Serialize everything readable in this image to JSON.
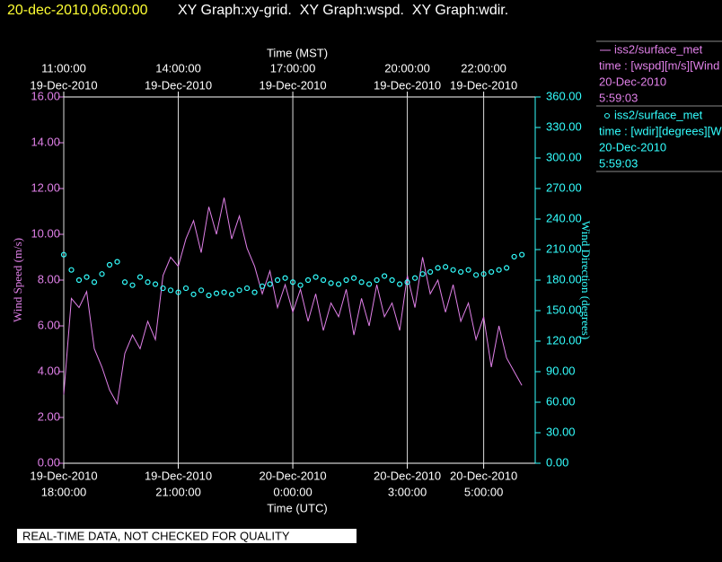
{
  "chart_data": {
    "type": "line",
    "timestamp": "20-dec-2010,06:00:00",
    "title": "XY Graph:xy-grid.  XY Graph:wspd.  XY Graph:wdir.",
    "x_label": "Time (UTC)",
    "x2_label": "Time (MST)",
    "y_label": "Wind Speed (m/s)",
    "y2_label": "Wind Direction (degrees)",
    "note": "REAL-TIME DATA, NOT CHECKED FOR QUALITY",
    "xlim": [
      0,
      12.35
    ],
    "xticks": [
      {
        "value": 0,
        "label": [
          "19-Dec-2010",
          "18:00:00"
        ]
      },
      {
        "value": 3,
        "label": [
          "19-Dec-2010",
          "21:00:00"
        ]
      },
      {
        "value": 6,
        "label": [
          "20-Dec-2010",
          "0:00:00"
        ]
      },
      {
        "value": 9,
        "label": [
          "20-Dec-2010",
          "3:00:00"
        ]
      },
      {
        "value": 11,
        "label": [
          "20-Dec-2010",
          "5:00:00"
        ]
      }
    ],
    "x2ticks": [
      {
        "value": 0,
        "label": [
          "11:00:00",
          "19-Dec-2010"
        ]
      },
      {
        "value": 3,
        "label": [
          "14:00:00",
          "19-Dec-2010"
        ]
      },
      {
        "value": 6,
        "label": [
          "17:00:00",
          "19-Dec-2010"
        ]
      },
      {
        "value": 9,
        "label": [
          "20:00:00",
          "19-Dec-2010"
        ]
      },
      {
        "value": 11,
        "label": [
          "22:00:00",
          "19-Dec-2010"
        ]
      }
    ],
    "ylim": [
      0,
      16
    ],
    "yticks": [
      {
        "value": 0,
        "label": "0.00"
      },
      {
        "value": 2,
        "label": "2.00"
      },
      {
        "value": 4,
        "label": "4.00"
      },
      {
        "value": 6,
        "label": "6.00"
      },
      {
        "value": 8,
        "label": "8.00"
      },
      {
        "value": 10,
        "label": "10.00"
      },
      {
        "value": 12,
        "label": "12.00"
      },
      {
        "value": 14,
        "label": "14.00"
      },
      {
        "value": 16,
        "label": "16.00"
      }
    ],
    "y2lim": [
      0,
      360
    ],
    "y2ticks": [
      {
        "value": 0,
        "label": "0.00"
      },
      {
        "value": 30,
        "label": "30.00"
      },
      {
        "value": 60,
        "label": "60.00"
      },
      {
        "value": 90,
        "label": "90.00"
      },
      {
        "value": 120,
        "label": "120.00"
      },
      {
        "value": 150,
        "label": "150.00"
      },
      {
        "value": 180,
        "label": "180.00"
      },
      {
        "value": 210,
        "label": "210.00"
      },
      {
        "value": 240,
        "label": "240.00"
      },
      {
        "value": 270,
        "label": "270.00"
      },
      {
        "value": 300,
        "label": "300.00"
      },
      {
        "value": 330,
        "label": "330.00"
      },
      {
        "value": 360,
        "label": "360.00"
      }
    ],
    "grid": true,
    "x": [
      0,
      0.2,
      0.4,
      0.6,
      0.8,
      1,
      1.2,
      1.4,
      1.6,
      1.8,
      2,
      2.2,
      2.4,
      2.6,
      2.8,
      3,
      3.2,
      3.4,
      3.6,
      3.8,
      4,
      4.2,
      4.4,
      4.6,
      4.8,
      5,
      5.2,
      5.4,
      5.6,
      5.8,
      6,
      6.2,
      6.4,
      6.6,
      6.8,
      7,
      7.2,
      7.4,
      7.6,
      7.8,
      8,
      8.2,
      8.4,
      8.6,
      8.8,
      9,
      9.2,
      9.4,
      9.6,
      9.8,
      10,
      10.2,
      10.4,
      10.6,
      10.8,
      11,
      11.2,
      11.4,
      11.6,
      11.8,
      12
    ],
    "series": [
      {
        "name": "iss2/surface_met",
        "type": "line",
        "color": "#e080e8",
        "axis": "y",
        "legend_lines": [
          "time : [wspd][m/s][Wind",
          "20-Dec-2010",
          "5:59:03"
        ],
        "values": [
          3.0,
          7.2,
          6.8,
          7.5,
          5.0,
          4.2,
          3.2,
          2.6,
          4.8,
          5.6,
          5.0,
          6.2,
          5.4,
          8.2,
          9.0,
          8.6,
          9.8,
          10.6,
          9.2,
          11.2,
          10.0,
          11.6,
          9.8,
          10.8,
          9.4,
          8.6,
          7.4,
          8.4,
          6.8,
          7.8,
          6.6,
          7.6,
          6.2,
          7.4,
          5.8,
          7.0,
          6.4,
          7.6,
          5.6,
          7.2,
          6.0,
          7.8,
          6.4,
          7.0,
          5.8,
          8.2,
          6.8,
          9.0,
          7.4,
          8.0,
          6.6,
          7.8,
          6.2,
          7.0,
          5.4,
          6.4,
          4.2,
          6.0,
          4.6,
          4.0,
          3.4
        ]
      },
      {
        "name": "iss2/surface_met",
        "type": "scatter",
        "color": "#33ffff",
        "axis": "y2",
        "legend_lines": [
          "time : [wdir][degrees][W",
          "20-Dec-2010",
          "5:59:03"
        ],
        "values": [
          205,
          190,
          180,
          183,
          178,
          186,
          195,
          198,
          178,
          175,
          183,
          178,
          176,
          172,
          170,
          168,
          172,
          166,
          170,
          165,
          167,
          168,
          166,
          170,
          172,
          168,
          174,
          176,
          180,
          182,
          178,
          175,
          180,
          183,
          180,
          177,
          176,
          180,
          182,
          178,
          176,
          180,
          184,
          180,
          176,
          178,
          182,
          186,
          188,
          192,
          193,
          190,
          188,
          190,
          185,
          186,
          188,
          190,
          192,
          203,
          205
        ]
      }
    ]
  }
}
